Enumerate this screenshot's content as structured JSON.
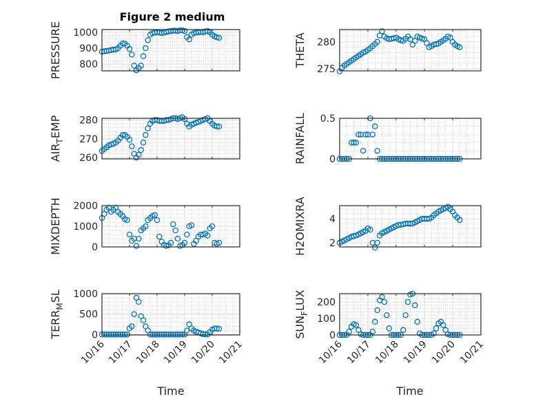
{
  "figure_title": "Figure 2 medium",
  "marker_color": "#0072BD",
  "chart_data": {
    "type": "scatter",
    "x_unit": "hours since 10/16 00:00",
    "x_hours": [
      0,
      2,
      4,
      6,
      8,
      10,
      12,
      14,
      16,
      18,
      20,
      22,
      24,
      26,
      28,
      30,
      32,
      34,
      36,
      38,
      40,
      42,
      44,
      46,
      48,
      50,
      52,
      54,
      56,
      58,
      60,
      62,
      64,
      66,
      68,
      70,
      72,
      74,
      76,
      78,
      80,
      82,
      84,
      86,
      88,
      90,
      92,
      94,
      96,
      98,
      100,
      102
    ],
    "x_tick_labels": [
      "10/16",
      "10/17",
      "10/18",
      "10/19",
      "10/20",
      "10/21"
    ],
    "xlabel": "Time",
    "grid": "major+minor",
    "panels": [
      {
        "ylabel": "PRESSURE",
        "ylim": [
          757,
          1017
        ],
        "yticks": [
          800,
          900,
          1000
        ],
        "values": [
          878,
          880,
          882,
          885,
          888,
          890,
          892,
          900,
          915,
          930,
          928,
          915,
          895,
          860,
          790,
          760,
          775,
          790,
          850,
          900,
          950,
          985,
          995,
          998,
          1000,
          998,
          995,
          998,
          1002,
          1005,
          1008,
          1010,
          1010,
          1008,
          1012,
          1012,
          1008,
          970,
          955,
          985,
          995,
          998,
          1000,
          1002,
          1000,
          1005,
          1008,
          1000,
          985,
          975,
          968,
          965
        ]
      },
      {
        "ylabel": "THETA",
        "ylim": [
          274.6,
          282.3
        ],
        "yticks": [
          275,
          280
        ],
        "values": [
          274.5,
          275.2,
          275.6,
          275.9,
          276.2,
          276.5,
          276.8,
          277.1,
          277.4,
          277.7,
          278.0,
          278.2,
          278.5,
          278.8,
          279.2,
          279.6,
          280.0,
          281.2,
          282.0,
          281.0,
          280.7,
          280.5,
          280.6,
          280.7,
          280.8,
          280.5,
          280.3,
          280.2,
          280.6,
          281.0,
          280.5,
          279.5,
          280.2,
          281.0,
          280.8,
          280.6,
          280.5,
          279.8,
          279.0,
          279.2,
          279.5,
          279.6,
          279.7,
          280.0,
          280.3,
          280.6,
          281.0,
          280.8,
          280.0,
          279.5,
          279.2,
          279.0
        ]
      },
      {
        "ylabel": "AIR_TEMP",
        "ylim": [
          259.3,
          280.9
        ],
        "yticks": [
          260,
          270,
          280
        ],
        "values": [
          263.5,
          264.5,
          265.5,
          266.5,
          267,
          267.5,
          268,
          269,
          270.5,
          272,
          272,
          271,
          269.5,
          266,
          262,
          260,
          261.5,
          264,
          268,
          272,
          275.5,
          278,
          279.5,
          280,
          280,
          279.5,
          279.5,
          279.5,
          280,
          280,
          280.5,
          281,
          281,
          280.5,
          281,
          281.5,
          280.5,
          278,
          276.5,
          277.5,
          278,
          278.5,
          279,
          279.5,
          280,
          280.5,
          281,
          279.5,
          278,
          277,
          276.5,
          276.5
        ]
      },
      {
        "ylabel": "RAINFALL",
        "ylim": [
          0,
          0.5
        ],
        "yticks": [
          0,
          0.5
        ],
        "values": [
          0,
          0,
          0,
          0,
          0,
          0.2,
          0.2,
          0.2,
          0.3,
          0.3,
          0.1,
          0.3,
          0.3,
          0.5,
          0.3,
          0.4,
          0.1,
          0,
          0,
          0,
          0,
          0,
          0,
          0,
          0,
          0,
          0,
          0,
          0,
          0,
          0,
          0,
          0,
          0,
          0,
          0,
          0,
          0,
          0,
          0,
          0,
          0,
          0,
          0,
          0,
          0,
          0,
          0,
          0,
          0,
          0,
          0
        ]
      },
      {
        "ylabel": "MIXDEPTH",
        "ylim": [
          0,
          2000
        ],
        "yticks": [
          0,
          1000,
          2000
        ],
        "values": [
          1400,
          1600,
          1800,
          1900,
          1700,
          1800,
          1900,
          1700,
          1600,
          1500,
          1350,
          1300,
          600,
          300,
          400,
          50,
          400,
          800,
          900,
          1000,
          1300,
          1400,
          1500,
          1550,
          1300,
          500,
          250,
          100,
          50,
          80,
          200,
          1100,
          800,
          400,
          50,
          100,
          200,
          600,
          1000,
          1050,
          150,
          300,
          500,
          600,
          600,
          650,
          550,
          900,
          1000,
          200,
          150,
          200
        ]
      },
      {
        "ylabel": "H2OMIXRA",
        "ylim": [
          1.66,
          5.09
        ],
        "yticks": [
          2,
          4
        ],
        "values": [
          2.0,
          2.1,
          2.2,
          2.3,
          2.4,
          2.5,
          2.55,
          2.6,
          2.7,
          2.8,
          2.9,
          3.0,
          3.2,
          3.1,
          2.0,
          1.6,
          2.0,
          2.6,
          2.8,
          2.9,
          3.0,
          3.1,
          3.2,
          3.3,
          3.4,
          3.5,
          3.5,
          3.55,
          3.6,
          3.6,
          3.6,
          3.6,
          3.7,
          3.8,
          3.9,
          4.0,
          4.0,
          4.0,
          4.0,
          4.1,
          4.3,
          4.45,
          4.6,
          4.7,
          4.8,
          4.9,
          5.0,
          4.8,
          4.6,
          4.3,
          4.1,
          3.9
        ]
      },
      {
        "ylabel": "TERR_MSL",
        "ylim": [
          -10,
          1000
        ],
        "yticks": [
          0,
          500,
          1000
        ],
        "values": [
          0,
          0,
          0,
          0,
          0,
          0,
          0,
          0,
          0,
          0,
          0,
          0,
          150,
          200,
          500,
          900,
          800,
          450,
          350,
          200,
          100,
          0,
          0,
          0,
          0,
          0,
          0,
          0,
          0,
          0,
          0,
          0,
          0,
          0,
          0,
          0,
          0,
          100,
          250,
          150,
          100,
          70,
          50,
          30,
          10,
          5,
          0,
          60,
          120,
          150,
          150,
          140
        ]
      },
      {
        "ylabel": "SUN_FLUX",
        "ylim": [
          0,
          250
        ],
        "yticks": [
          0,
          100,
          200
        ],
        "values": [
          0,
          0,
          0,
          0,
          20,
          50,
          65,
          60,
          30,
          5,
          0,
          0,
          0,
          0,
          20,
          80,
          150,
          210,
          230,
          200,
          120,
          40,
          0,
          0,
          0,
          0,
          0,
          30,
          120,
          200,
          245,
          250,
          180,
          80,
          10,
          0,
          0,
          0,
          0,
          0,
          10,
          40,
          70,
          80,
          60,
          30,
          5,
          0,
          0,
          0,
          0,
          0
        ]
      }
    ]
  }
}
